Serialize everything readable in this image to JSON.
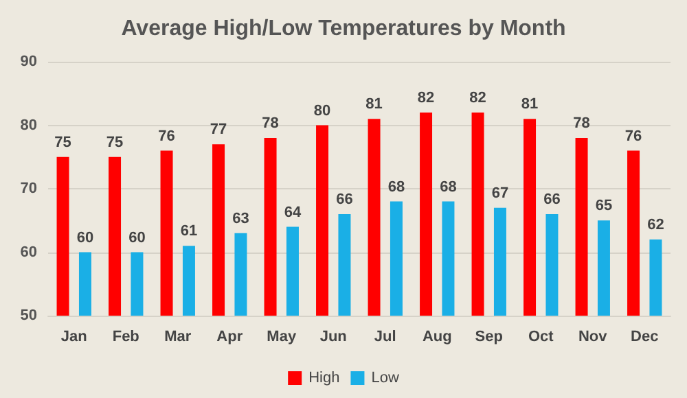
{
  "chart_data": {
    "type": "bar",
    "title": "Average High/Low Temperatures by Month",
    "categories": [
      "Jan",
      "Feb",
      "Mar",
      "Apr",
      "May",
      "Jun",
      "Jul",
      "Aug",
      "Sep",
      "Oct",
      "Nov",
      "Dec"
    ],
    "series": [
      {
        "name": "High",
        "color": "#ff0000",
        "values": [
          75,
          75,
          76,
          77,
          78,
          80,
          81,
          82,
          82,
          81,
          78,
          76
        ]
      },
      {
        "name": "Low",
        "color": "#1aafe6",
        "values": [
          60,
          60,
          61,
          63,
          64,
          66,
          68,
          68,
          67,
          66,
          65,
          62
        ]
      }
    ],
    "ylim": [
      50,
      90
    ],
    "yticks": [
      50,
      60,
      70,
      80,
      90
    ],
    "grid": "y",
    "legend": "bottom",
    "data_labels": true
  }
}
